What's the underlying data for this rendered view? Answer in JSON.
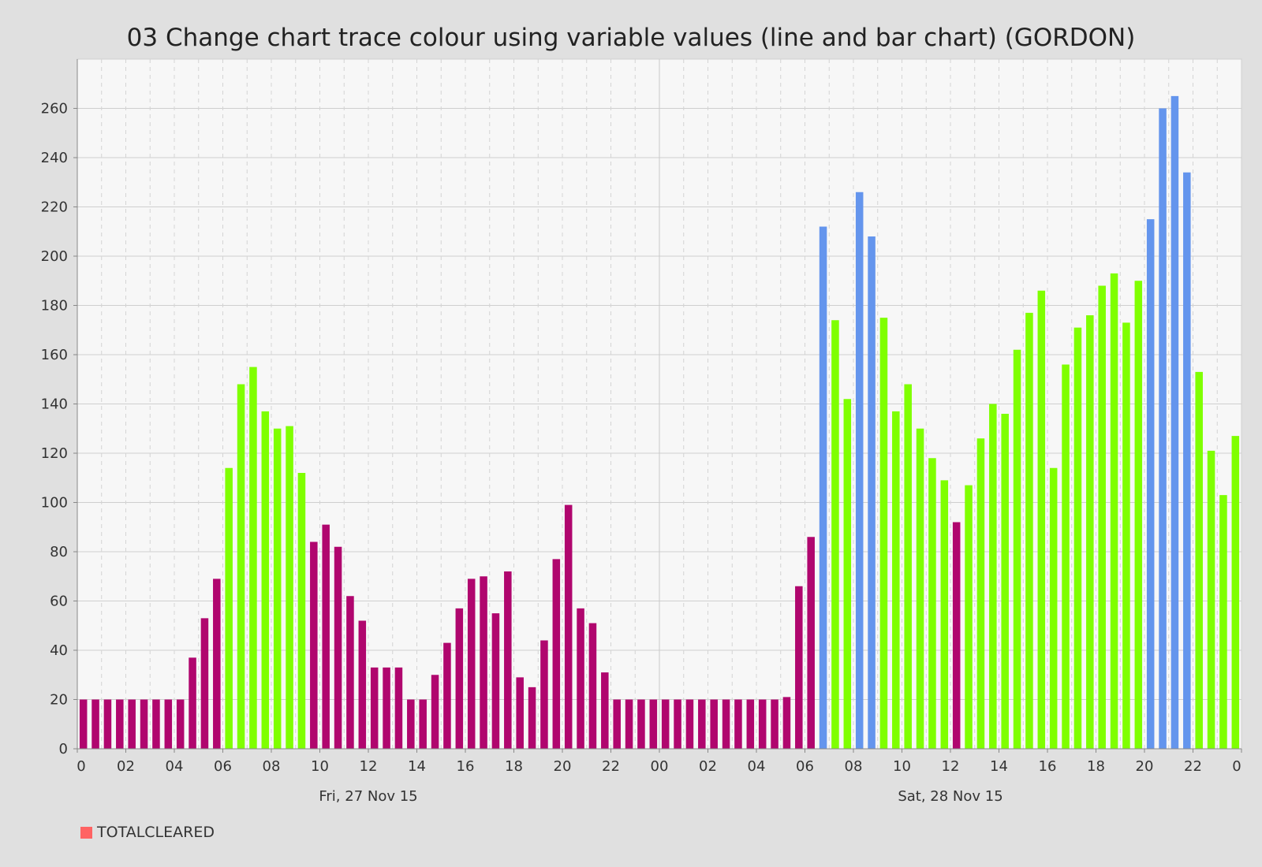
{
  "chart_title": "03 Change chart trace colour using variable values (line and bar chart) (GORDON)",
  "legend": {
    "label": "TOTALCLEARED",
    "color": "#ff6363"
  },
  "chart_data": {
    "type": "bar",
    "title": "03 Change chart trace colour using variable values (line and bar chart) (GORDON)",
    "xlabel": "",
    "ylabel": "",
    "ylim": [
      0,
      280
    ],
    "y_ticks": [
      0,
      20,
      40,
      60,
      80,
      100,
      120,
      140,
      160,
      180,
      200,
      220,
      240,
      260
    ],
    "x_ticks": [
      "0",
      "02",
      "04",
      "06",
      "08",
      "10",
      "12",
      "14",
      "16",
      "18",
      "20",
      "22",
      "00",
      "02",
      "04",
      "06",
      "08",
      "10",
      "12",
      "14",
      "16",
      "18",
      "20",
      "22",
      "0"
    ],
    "date_labels": [
      {
        "label": "Fri, 27 Nov 15",
        "hour": 12
      },
      {
        "label": "Sat, 28 Nov 15",
        "hour": 36
      }
    ],
    "x_hours_range": [
      0,
      48
    ],
    "grid": true,
    "legend_position": "bottom-left",
    "colors": {
      "low": "#b0066e",
      "medium": "#7fff00",
      "high": "#6495ed"
    },
    "series": [
      {
        "name": "TOTALCLEARED",
        "bar_hours": [
          0.25,
          0.75,
          1.25,
          1.75,
          2.25,
          2.75,
          3.25,
          3.75,
          4.25,
          4.75,
          5.25,
          5.75,
          6.25,
          6.75,
          7.25,
          7.75,
          8.25,
          8.75,
          9.25,
          9.75,
          10.25,
          10.75,
          11.25,
          11.75,
          12.25,
          12.75,
          13.25,
          13.75,
          14.25,
          14.75,
          15.25,
          15.75,
          16.25,
          16.75,
          17.25,
          17.75,
          18.25,
          18.75,
          19.25,
          19.75,
          20.25,
          20.75,
          21.25,
          21.75,
          22.25,
          22.75,
          23.25,
          23.75,
          24.25,
          24.75,
          25.25,
          25.75,
          26.25,
          26.75,
          27.25,
          27.75,
          28.25,
          28.75,
          29.25,
          29.75,
          30.25,
          30.75,
          31.25,
          31.75,
          32.25,
          32.75,
          33.25,
          33.75,
          34.25,
          34.75,
          35.25,
          35.75,
          36.25,
          36.75,
          37.25,
          37.75,
          38.25,
          38.75,
          39.25,
          39.75,
          40.25,
          40.75,
          41.25,
          41.75,
          42.25,
          42.75,
          43.25,
          43.75,
          44.25,
          44.75,
          45.25,
          45.75,
          46.25,
          46.75,
          47.25,
          47.75
        ],
        "values": [
          20,
          20,
          20,
          20,
          20,
          20,
          20,
          20,
          20,
          37,
          53,
          69,
          114,
          148,
          155,
          137,
          130,
          131,
          112,
          84,
          91,
          82,
          62,
          52,
          33,
          33,
          33,
          20,
          20,
          30,
          43,
          57,
          69,
          70,
          55,
          72,
          29,
          25,
          44,
          77,
          99,
          57,
          51,
          31,
          20,
          20,
          20,
          20,
          20,
          20,
          20,
          20,
          20,
          20,
          20,
          20,
          20,
          20,
          21,
          66,
          86,
          212,
          174,
          142,
          226,
          208,
          175,
          137,
          148,
          130,
          118,
          109,
          92,
          107,
          126,
          140,
          136,
          162,
          177,
          186,
          114,
          156,
          171,
          176,
          188,
          193,
          173,
          190,
          215,
          260,
          265,
          234,
          153,
          121,
          103,
          127
        ],
        "color_levels": [
          "low",
          "low",
          "low",
          "low",
          "low",
          "low",
          "low",
          "low",
          "low",
          "low",
          "low",
          "low",
          "medium",
          "medium",
          "medium",
          "medium",
          "medium",
          "medium",
          "medium",
          "low",
          "low",
          "low",
          "low",
          "low",
          "low",
          "low",
          "low",
          "low",
          "low",
          "low",
          "low",
          "low",
          "low",
          "low",
          "low",
          "low",
          "low",
          "low",
          "low",
          "low",
          "low",
          "low",
          "low",
          "low",
          "low",
          "low",
          "low",
          "low",
          "low",
          "low",
          "low",
          "low",
          "low",
          "low",
          "low",
          "low",
          "low",
          "low",
          "low",
          "low",
          "low",
          "high",
          "medium",
          "medium",
          "high",
          "high",
          "medium",
          "medium",
          "medium",
          "medium",
          "medium",
          "medium",
          "low",
          "medium",
          "medium",
          "medium",
          "medium",
          "medium",
          "medium",
          "medium",
          "medium",
          "medium",
          "medium",
          "medium",
          "medium",
          "medium",
          "medium",
          "medium",
          "high",
          "high",
          "high",
          "high",
          "medium",
          "medium",
          "medium",
          "medium"
        ]
      }
    ]
  }
}
